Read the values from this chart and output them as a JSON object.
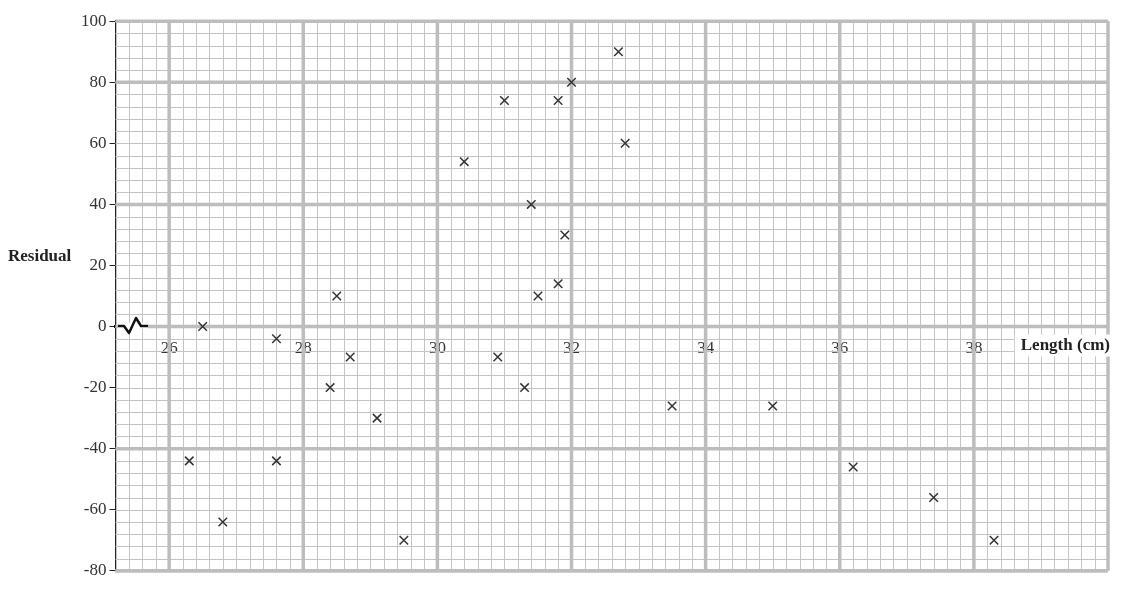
{
  "chart_data": {
    "type": "scatter",
    "xlabel": "Length (cm)",
    "ylabel": "Residual",
    "x": [
      26.3,
      26.5,
      26.8,
      27.6,
      27.6,
      28.4,
      28.5,
      28.7,
      29.1,
      29.5,
      30.4,
      30.9,
      31.0,
      31.3,
      31.4,
      31.5,
      31.8,
      31.8,
      31.9,
      32.0,
      32.7,
      32.8,
      33.5,
      35.0,
      36.2,
      37.4,
      38.3
    ],
    "values": [
      -44,
      0,
      -64,
      -4,
      -44,
      -20,
      10,
      -10,
      -30,
      -70,
      54,
      -10,
      74,
      -20,
      40,
      10,
      74,
      14,
      30,
      80,
      90,
      60,
      -26,
      -26,
      -46,
      -56,
      -70
    ],
    "color": "#333333",
    "marker": "cross",
    "grid": true,
    "legend": false,
    "xlim": [
      25.2,
      40
    ],
    "xticks": [
      26,
      28,
      30,
      32,
      34,
      36,
      38
    ],
    "ylim": [
      -80,
      100
    ],
    "yticks": [
      -80,
      -60,
      -40,
      -20,
      0,
      20,
      40,
      60,
      80,
      100
    ]
  }
}
